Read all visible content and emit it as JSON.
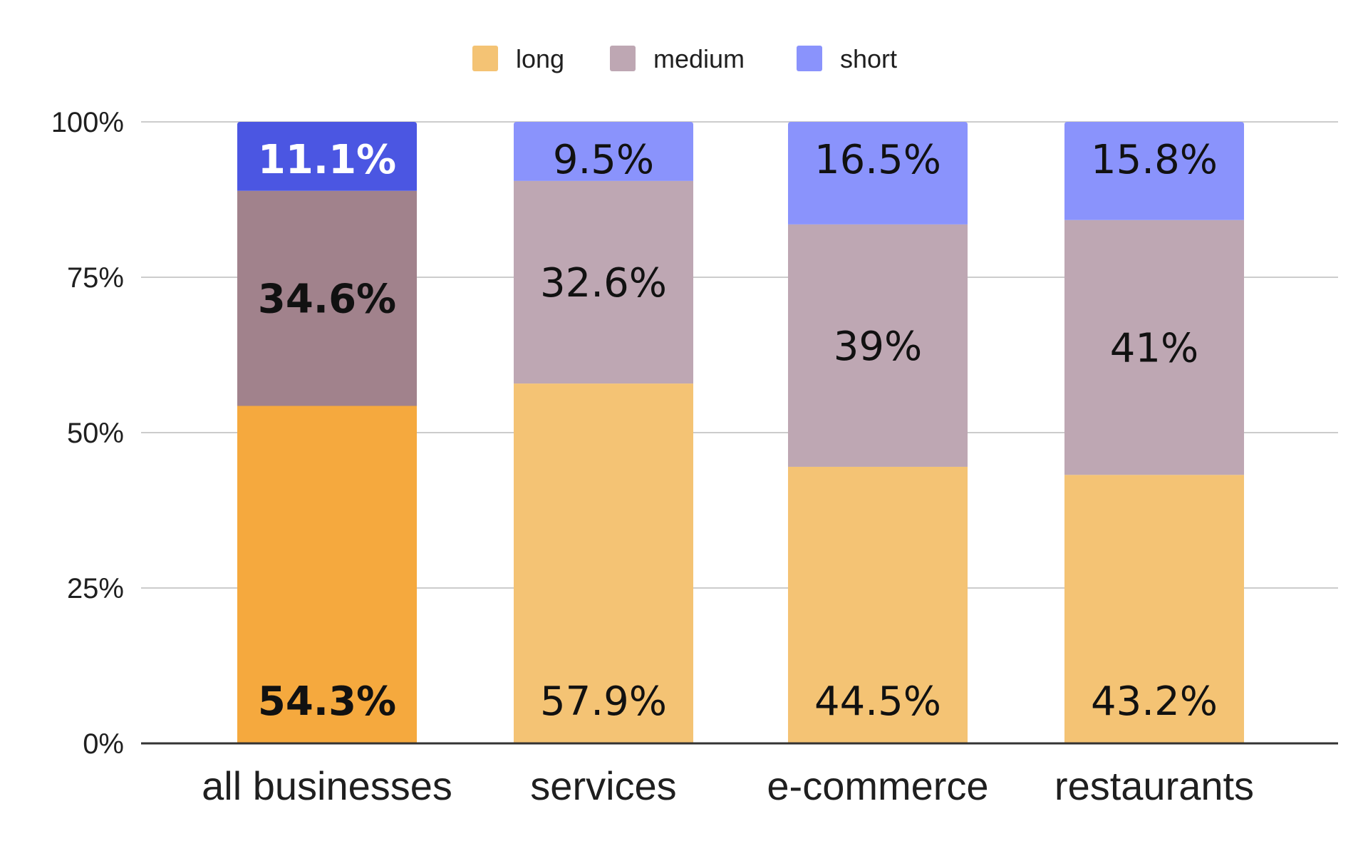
{
  "chart_data": {
    "type": "bar",
    "stacked": true,
    "percent_stacked": true,
    "title": "",
    "xlabel": "",
    "ylabel": "",
    "ylim": [
      0,
      100
    ],
    "y_ticks": [
      "0%",
      "25%",
      "50%",
      "75%",
      "100%"
    ],
    "grid": true,
    "legend_position": "top",
    "categories": [
      "all businesses",
      "services",
      "e-commerce",
      "restaurants"
    ],
    "series": [
      {
        "name": "long",
        "values": [
          54.3,
          57.9,
          44.5,
          43.2
        ],
        "labels": [
          "54.3%",
          "57.9%",
          "44.5%",
          "43.2%"
        ],
        "color": "#f4c374",
        "highlight_color": "#f5a93e"
      },
      {
        "name": "medium",
        "values": [
          34.6,
          32.6,
          39,
          41
        ],
        "labels": [
          "34.6%",
          "32.6%",
          "39%",
          "41%"
        ],
        "color": "#bea7b3",
        "highlight_color": "#a1828c"
      },
      {
        "name": "short",
        "values": [
          11.1,
          9.5,
          16.5,
          15.8
        ],
        "labels": [
          "11.1%",
          "9.5%",
          "16.5%",
          "15.8%"
        ],
        "color": "#8a93fc",
        "highlight_color": "#4b56e2"
      }
    ],
    "highlighted_category_index": 0
  }
}
